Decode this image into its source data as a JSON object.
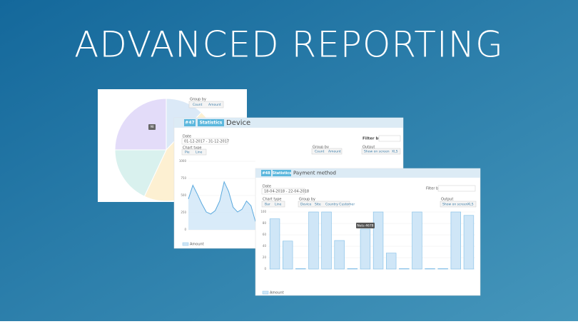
{
  "title": "ADVANCED REPORTING",
  "pie_panel": {
    "group_label": "Group by",
    "buttons": [
      "Count",
      "Amount"
    ],
    "badge": "98",
    "slices": [
      {
        "value": 12,
        "color": "#dbe9f7"
      },
      {
        "value": 45,
        "color": "#fdf0d2"
      },
      {
        "value": 18,
        "color": "#d9f1ee"
      },
      {
        "value": 25,
        "color": "#e3dcf9"
      }
    ]
  },
  "device_panel": {
    "id": "#47",
    "tag": "Statistics",
    "heading": "Device",
    "date_label": "Date",
    "date": "01-12-2017 - 31-12-2017",
    "chart_type_label": "Chart type",
    "chart_types": [
      "Pie",
      "Line"
    ],
    "filter_label": "Filter by Site",
    "group_label": "Group by",
    "groups": [
      "Count",
      "Amount"
    ],
    "output_label": "Output",
    "outputs": [
      "Show on screen",
      "XLS"
    ],
    "legend": "Amount",
    "chart": {
      "ylim": [
        0,
        1000
      ],
      "yticks": [
        0,
        250,
        500,
        750,
        1000
      ],
      "values": [
        450,
        650,
        520,
        380,
        260,
        230,
        280,
        420,
        700,
        560,
        330,
        260,
        300,
        420,
        350,
        120
      ]
    }
  },
  "payment_panel": {
    "id": "#48",
    "tag": "Statistics",
    "heading": "Payment method",
    "date_label": "Date",
    "date": "18-04-2018 - 22-04-2018",
    "chart_type_label": "Chart type",
    "chart_types": [
      "Bar",
      "Line"
    ],
    "filter_label": "Filter by Site",
    "group_label": "Group by",
    "groups": [
      "Device",
      "Site",
      "Country Customer"
    ],
    "output_label": "Output",
    "outputs": [
      "Show on screen",
      "XLS"
    ],
    "tooltip": "Nets 4678",
    "legend": "Amount",
    "chart": {
      "ylim": [
        0,
        100
      ],
      "yticks": [
        0,
        20,
        40,
        60,
        80,
        100
      ],
      "values": [
        88,
        49,
        1,
        100,
        100,
        50,
        1,
        70,
        100,
        28,
        1,
        100,
        1,
        1,
        100,
        94
      ]
    }
  }
}
